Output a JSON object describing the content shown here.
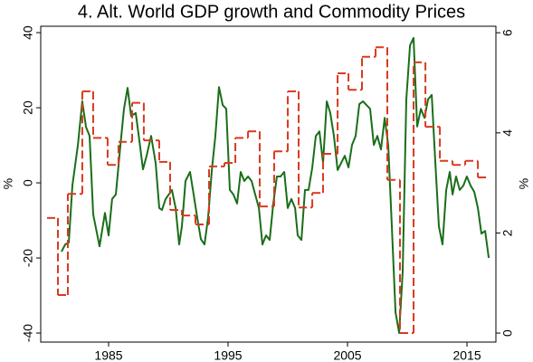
{
  "chart_data": {
    "type": "line",
    "title": "4. Alt. World GDP growth and Commodity Prices",
    "ylabel": "%",
    "y2label": "%",
    "xlim": [
      1979.32,
      2017.42
    ],
    "xticks": [
      1985,
      1995,
      2005,
      2015
    ],
    "ylim": [
      -42.4,
      41.7
    ],
    "yticks": [
      -40,
      -20,
      0,
      20,
      40
    ],
    "y2lim": [
      -0.18,
      6.13
    ],
    "y2ticks": [
      0,
      2,
      4,
      6
    ],
    "series": [
      {
        "color": "#1a6e1a",
        "x": [
          1981.06,
          1981.37,
          1981.67,
          1981.97,
          1982.43,
          1982.8,
          1983.11,
          1983.41,
          1983.71,
          1984.24,
          1984.7,
          1985.0,
          1985.3,
          1985.61,
          1985.99,
          1986.29,
          1986.59,
          1986.89,
          1987.27,
          1987.58,
          1987.88,
          1988.18,
          1988.56,
          1988.94,
          1989.24,
          1989.47,
          1989.77,
          1990.3,
          1990.61,
          1990.91,
          1991.14,
          1991.44,
          1991.82,
          1992.12,
          1992.42,
          1992.73,
          1993.03,
          1993.33,
          1993.64,
          1993.94,
          1994.24,
          1994.55,
          1994.85,
          1995.15,
          1995.45,
          1995.76,
          1996.06,
          1996.36,
          1996.67,
          1996.97,
          1997.27,
          1997.58,
          1997.88,
          1998.18,
          1998.48,
          1998.79,
          1999.09,
          1999.39,
          1999.7,
          2000.0,
          2000.3,
          2000.61,
          2000.83,
          2001.14,
          2001.44,
          2001.74,
          2002.05,
          2002.35,
          2002.65,
          2002.95,
          2003.26,
          2003.56,
          2003.86,
          2004.17,
          2004.47,
          2004.77,
          2005.08,
          2005.38,
          2005.68,
          2005.99,
          2006.29,
          2006.59,
          2006.89,
          2007.2,
          2007.5,
          2007.8,
          2008.11,
          2008.41,
          2008.71,
          2009.02,
          2009.32,
          2009.62,
          2009.92,
          2010.23,
          2010.53,
          2010.83,
          2011.14,
          2011.44,
          2011.74,
          2012.05,
          2012.35,
          2012.65,
          2012.95,
          2013.26,
          2013.56,
          2013.79,
          2014.09,
          2014.39,
          2014.7,
          2014.99,
          2015.3,
          2015.61,
          2015.91,
          2016.21,
          2016.52,
          2016.82
        ],
        "values": [
          -18.3,
          -16.4,
          -15.9,
          -0.7,
          10.1,
          21.7,
          14.9,
          12.5,
          -8.4,
          -16.9,
          -8.0,
          -14.0,
          -4.3,
          -3.1,
          10.1,
          19.7,
          25.3,
          17.8,
          18.6,
          11.3,
          3.6,
          7.2,
          12.5,
          5.3,
          -6.7,
          -7.2,
          -4.3,
          -1.9,
          -6.7,
          -16.4,
          -11.6,
          0.5,
          2.9,
          -3.1,
          -9.2,
          -15.0,
          -16.4,
          -9.2,
          3.4,
          12.5,
          25.5,
          20.7,
          19.7,
          -1.9,
          -3.1,
          -5.5,
          2.9,
          0.5,
          1.7,
          0.5,
          -3.1,
          -6.7,
          -16.4,
          -14.0,
          -15.2,
          -5.5,
          1.7,
          1.7,
          2.9,
          -6.7,
          -4.3,
          -6.7,
          -14.0,
          -15.2,
          -1.9,
          -1.9,
          4.1,
          12.5,
          13.7,
          5.3,
          21.7,
          18.6,
          12.5,
          3.4,
          5.3,
          7.2,
          4.1,
          10.1,
          12.5,
          20.96,
          21.7,
          20.7,
          19.7,
          10.1,
          12.5,
          8.9,
          17.3,
          10.1,
          -11.6,
          -34.5,
          -40.0,
          -23.6,
          22.2,
          36.6,
          38.6,
          15.0,
          19.7,
          17.3,
          22.2,
          23.4,
          5.3,
          -11.6,
          -16.4,
          -1.9,
          2.9,
          -3.1,
          1.7,
          -1.9,
          -0.7,
          1.7,
          -0.7,
          -2.4,
          -6.7,
          -13.5,
          -12.8,
          -20.0
        ]
      },
      {
        "color": "#d93a1e",
        "axis": "y2",
        "dashed": true,
        "step": true,
        "bins": [
          1979.85,
          1980.76,
          1981.59,
          1982.8,
          1983.71,
          1984.92,
          1985.83,
          1986.97,
          1987.95,
          1989.24,
          1990.15,
          1991.14,
          1992.27,
          1993.41,
          1994.7,
          1995.61,
          1996.67,
          1997.65,
          1998.86,
          2000.0,
          2000.91,
          2002.05,
          2002.95,
          2004.17,
          2005.08,
          2006.21,
          2007.35,
          2008.33,
          2009.39,
          2010.53,
          2011.52,
          2012.73,
          2013.79,
          2014.85,
          2015.91,
          2016.82
        ],
        "values": [
          2.3,
          0.76,
          2.78,
          4.83,
          3.9,
          3.36,
          3.82,
          4.6,
          3.85,
          3.42,
          2.46,
          2.35,
          2.17,
          3.33,
          3.4,
          3.9,
          4.03,
          2.53,
          3.63,
          4.83,
          2.51,
          2.8,
          3.58,
          5.19,
          4.86,
          5.52,
          5.71,
          3.06,
          0.0,
          5.41,
          4.12,
          3.44,
          3.36,
          3.44,
          3.11
        ]
      }
    ]
  }
}
